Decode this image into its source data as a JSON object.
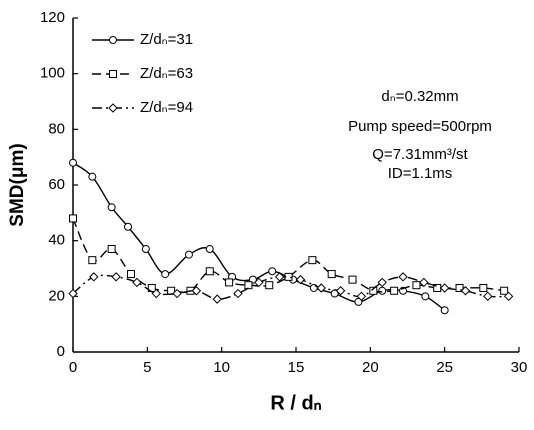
{
  "chart_data": {
    "type": "line",
    "xlabel": "R / dₙ",
    "ylabel": "SMD(μm)",
    "xlim": [
      0,
      30
    ],
    "xticks": [
      0,
      5,
      10,
      15,
      20,
      25,
      30
    ],
    "ylim": [
      0,
      120
    ],
    "yticks": [
      0,
      20,
      40,
      60,
      80,
      100,
      120
    ],
    "grid": false,
    "legend": "upper left",
    "annotations": [
      "dₙ=0.32mm",
      "Pump speed=500rpm",
      "Q=7.31mm³/st",
      "ID=1.1ms"
    ],
    "series": [
      {
        "name": "Z/dₙ=31",
        "color": "#000000",
        "line_style": "solid",
        "marker": "circle",
        "x": [
          0,
          1.3,
          2.6,
          3.7,
          4.9,
          6.2,
          7.8,
          9.2,
          10.7,
          12.1,
          13.4,
          14.8,
          16.2,
          17.6,
          19.2,
          20.8,
          22.2,
          23.7,
          25
        ],
        "values": [
          68,
          63,
          52,
          45,
          37,
          28,
          35,
          37,
          27,
          26,
          29,
          26,
          23,
          21,
          18,
          22,
          22,
          20,
          15
        ]
      },
      {
        "name": "Z/dₙ=63",
        "color": "#000000",
        "line_style": "dashed",
        "marker": "square",
        "x": [
          0,
          1.3,
          2.6,
          3.9,
          5.3,
          6.6,
          7.9,
          9.2,
          10.5,
          11.8,
          13.2,
          14.5,
          16.1,
          17.4,
          18.8,
          20.2,
          21.6,
          23.1,
          24.5,
          26,
          27.6,
          29
        ],
        "values": [
          48,
          33,
          37,
          28,
          23,
          22,
          22,
          29,
          25,
          24,
          24,
          27,
          33,
          28,
          26,
          22,
          22,
          24,
          23,
          23,
          23,
          22
        ]
      },
      {
        "name": "Z/dₙ=94",
        "color": "#000000",
        "line_style": "dashdot",
        "marker": "diamond",
        "x": [
          0,
          1.4,
          2.9,
          4.3,
          5.6,
          7,
          8.3,
          9.7,
          11.1,
          12.5,
          13.9,
          15.3,
          16.7,
          18,
          19.4,
          20.8,
          22.2,
          23.6,
          25,
          26.4,
          27.9,
          29.3
        ],
        "values": [
          21,
          27,
          27,
          25,
          21,
          21,
          22,
          19,
          21,
          25,
          27,
          26,
          23,
          22,
          20,
          25,
          27,
          25,
          23,
          22,
          20,
          20
        ]
      }
    ]
  }
}
